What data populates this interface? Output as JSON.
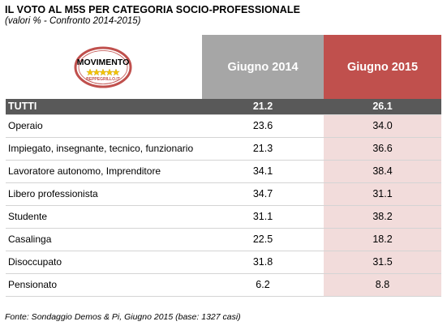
{
  "title": "IL VOTO AL M5S PER CATEGORIA SOCIO-PROFESSIONALE",
  "subtitle": "(valori % - Confronto 2014-2015)",
  "logo": {
    "word": "MOVIMENTO",
    "sub": "BEPPEGRILLO.IT"
  },
  "columns": [
    "Giugno 2014",
    "Giugno 2015"
  ],
  "colors": {
    "col2014": "#a6a6a6",
    "col2015": "#c0504d",
    "total_row": "#595959",
    "col2015_cells": "#f2dcdb"
  },
  "total": {
    "label": "TUTTI",
    "v2014": "21.2",
    "v2015": "26.1"
  },
  "rows": [
    {
      "label": "Operaio",
      "v2014": "23.6",
      "v2015": "34.0"
    },
    {
      "label": "Impiegato, insegnante, tecnico, funzionario",
      "v2014": "21.3",
      "v2015": "36.6"
    },
    {
      "label": "Lavoratore autonomo, Imprenditore",
      "v2014": "34.1",
      "v2015": "38.4"
    },
    {
      "label": "Libero professionista",
      "v2014": "34.7",
      "v2015": "31.1"
    },
    {
      "label": "Studente",
      "v2014": "31.1",
      "v2015": "38.2"
    },
    {
      "label": "Casalinga",
      "v2014": "22.5",
      "v2015": "18.2"
    },
    {
      "label": "Disoccupato",
      "v2014": "31.8",
      "v2015": "31.5"
    },
    {
      "label": "Pensionato",
      "v2014": "6.2",
      "v2015": "8.8"
    }
  ],
  "source": "Fonte: Sondaggio Demos & Pi, Giugno 2015 (base: 1327 casi)",
  "chart_data": {
    "type": "table",
    "title": "IL VOTO AL M5S PER CATEGORIA SOCIO-PROFESSIONALE",
    "subtitle": "(valori % - Confronto 2014-2015)",
    "categories": [
      "TUTTI",
      "Operaio",
      "Impiegato, insegnante, tecnico, funzionario",
      "Lavoratore autonomo, Imprenditore",
      "Libero professionista",
      "Studente",
      "Casalinga",
      "Disoccupato",
      "Pensionato"
    ],
    "series": [
      {
        "name": "Giugno 2014",
        "values": [
          21.2,
          23.6,
          21.3,
          34.1,
          34.7,
          31.1,
          22.5,
          31.8,
          6.2
        ]
      },
      {
        "name": "Giugno 2015",
        "values": [
          26.1,
          34.0,
          36.6,
          38.4,
          31.1,
          38.2,
          18.2,
          31.5,
          8.8
        ]
      }
    ]
  }
}
